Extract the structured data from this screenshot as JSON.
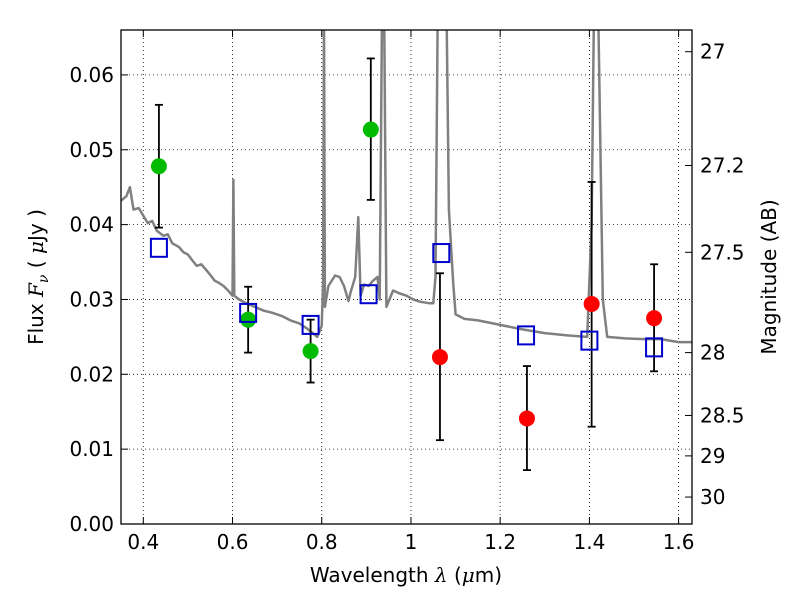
{
  "chart_data": {
    "type": "scatter",
    "xlabel_parts": {
      "name": "Wavelength",
      "symbol": "λ",
      "unit_prefix": "μ",
      "unit": "m"
    },
    "ylabel_parts": {
      "name": "Flux",
      "symbol": "F",
      "subscript": "ν",
      "unit_prefix": "μ",
      "unit": "Jy"
    },
    "y2label": "Magnitude (AB)",
    "xlim": [
      0.35,
      1.63
    ],
    "ylim": [
      0.0,
      0.066
    ],
    "xticks": [
      0.4,
      0.6,
      0.8,
      1.0,
      1.2,
      1.4,
      1.6
    ],
    "xtick_labels": [
      "0.4",
      "0.6",
      "0.8",
      "1",
      "1.2",
      "1.4",
      "1.6"
    ],
    "yticks": [
      0.0,
      0.01,
      0.02,
      0.03,
      0.04,
      0.05,
      0.06
    ],
    "ytick_labels": [
      "0.00",
      "0.01",
      "0.02",
      "0.03",
      "0.04",
      "0.05",
      "0.06"
    ],
    "y2ticks": [
      {
        "label": "27",
        "flux": 0.0631
      },
      {
        "label": "27.2",
        "flux": 0.0479
      },
      {
        "label": "27.5",
        "flux": 0.0363
      },
      {
        "label": "28",
        "flux": 0.0229
      },
      {
        "label": "28.5",
        "flux": 0.0145
      },
      {
        "label": "29",
        "flux": 0.0091
      },
      {
        "label": "30",
        "flux": 0.0036
      }
    ],
    "grid": true,
    "colors": {
      "model": "#808080",
      "optical_detection": "#00bb00",
      "nir_detection": "#ff0000",
      "model_photometry": "#0000cc",
      "errorbar": "#000000"
    },
    "series": [
      {
        "kind": "points_with_errors",
        "color_key": "optical_detection",
        "points": [
          {
            "x": 0.435,
            "y": 0.0478,
            "ylo": 0.0396,
            "yhi": 0.056
          },
          {
            "x": 0.635,
            "y": 0.0273,
            "ylo": 0.0229,
            "yhi": 0.0317
          },
          {
            "x": 0.775,
            "y": 0.0231,
            "ylo": 0.0189,
            "yhi": 0.0273
          },
          {
            "x": 0.91,
            "y": 0.0527,
            "ylo": 0.0433,
            "yhi": 0.0622
          }
        ]
      },
      {
        "kind": "points_with_errors",
        "color_key": "nir_detection",
        "points": [
          {
            "x": 1.065,
            "y": 0.0223,
            "ylo": 0.0112,
            "yhi": 0.0335
          },
          {
            "x": 1.26,
            "y": 0.0141,
            "ylo": 0.0072,
            "yhi": 0.0211
          },
          {
            "x": 1.405,
            "y": 0.0294,
            "ylo": 0.013,
            "yhi": 0.0457
          },
          {
            "x": 1.545,
            "y": 0.0275,
            "ylo": 0.0204,
            "yhi": 0.0347
          }
        ]
      },
      {
        "kind": "open_squares",
        "color_key": "model_photometry",
        "points": [
          {
            "x": 0.435,
            "y": 0.0369
          },
          {
            "x": 0.635,
            "y": 0.0282
          },
          {
            "x": 0.775,
            "y": 0.0266
          },
          {
            "x": 0.905,
            "y": 0.0307
          },
          {
            "x": 1.068,
            "y": 0.0362
          },
          {
            "x": 1.258,
            "y": 0.0252
          },
          {
            "x": 1.4,
            "y": 0.0245
          },
          {
            "x": 1.545,
            "y": 0.0236
          }
        ]
      },
      {
        "kind": "line",
        "color_key": "model",
        "points": [
          [
            0.35,
            0.0432
          ],
          [
            0.362,
            0.0438
          ],
          [
            0.37,
            0.045
          ],
          [
            0.378,
            0.042
          ],
          [
            0.39,
            0.0422
          ],
          [
            0.4,
            0.0412
          ],
          [
            0.41,
            0.0402
          ],
          [
            0.42,
            0.0405
          ],
          [
            0.43,
            0.0392
          ],
          [
            0.445,
            0.0385
          ],
          [
            0.455,
            0.0387
          ],
          [
            0.465,
            0.0375
          ],
          [
            0.48,
            0.037
          ],
          [
            0.49,
            0.0363
          ],
          [
            0.5,
            0.036
          ],
          [
            0.51,
            0.0352
          ],
          [
            0.52,
            0.0345
          ],
          [
            0.53,
            0.0347
          ],
          [
            0.54,
            0.034
          ],
          [
            0.55,
            0.0333
          ],
          [
            0.56,
            0.0325
          ],
          [
            0.57,
            0.0322
          ],
          [
            0.58,
            0.0318
          ],
          [
            0.59,
            0.0312
          ],
          [
            0.6,
            0.0305
          ],
          [
            0.602,
            0.046
          ],
          [
            0.604,
            0.0305
          ],
          [
            0.615,
            0.03
          ],
          [
            0.63,
            0.0295
          ],
          [
            0.65,
            0.029
          ],
          [
            0.67,
            0.0285
          ],
          [
            0.69,
            0.0282
          ],
          [
            0.71,
            0.0278
          ],
          [
            0.73,
            0.0272
          ],
          [
            0.75,
            0.0268
          ],
          [
            0.765,
            0.0262
          ],
          [
            0.78,
            0.0255
          ],
          [
            0.79,
            0.025
          ],
          [
            0.8,
            0.0265
          ],
          [
            0.803,
            0.032
          ],
          [
            0.805,
            0.068
          ],
          [
            0.807,
            0.029
          ],
          [
            0.815,
            0.0318
          ],
          [
            0.83,
            0.0332
          ],
          [
            0.84,
            0.033
          ],
          [
            0.85,
            0.0318
          ],
          [
            0.86,
            0.0298
          ],
          [
            0.865,
            0.031
          ],
          [
            0.875,
            0.033
          ],
          [
            0.882,
            0.041
          ],
          [
            0.887,
            0.0305
          ],
          [
            0.895,
            0.032
          ],
          [
            0.905,
            0.0318
          ],
          [
            0.915,
            0.0325
          ],
          [
            0.925,
            0.033
          ],
          [
            0.93,
            0.03
          ],
          [
            0.935,
            0.068
          ],
          [
            0.94,
            0.068
          ],
          [
            0.945,
            0.029
          ],
          [
            0.96,
            0.0312
          ],
          [
            0.975,
            0.0308
          ],
          [
            0.99,
            0.0305
          ],
          [
            1.005,
            0.03
          ],
          [
            1.02,
            0.0297
          ],
          [
            1.04,
            0.0295
          ],
          [
            1.05,
            0.0295
          ],
          [
            1.055,
            0.033
          ],
          [
            1.06,
            0.068
          ],
          [
            1.08,
            0.068
          ],
          [
            1.085,
            0.042
          ],
          [
            1.095,
            0.032
          ],
          [
            1.1,
            0.028
          ],
          [
            1.12,
            0.0274
          ],
          [
            1.15,
            0.0272
          ],
          [
            1.2,
            0.0266
          ],
          [
            1.25,
            0.026
          ],
          [
            1.3,
            0.0255
          ],
          [
            1.35,
            0.0252
          ],
          [
            1.395,
            0.025
          ],
          [
            1.405,
            0.04
          ],
          [
            1.41,
            0.068
          ],
          [
            1.42,
            0.068
          ],
          [
            1.43,
            0.03
          ],
          [
            1.44,
            0.025
          ],
          [
            1.48,
            0.0248
          ],
          [
            1.52,
            0.0247
          ],
          [
            1.56,
            0.0247
          ],
          [
            1.6,
            0.0243
          ],
          [
            1.63,
            0.0243
          ]
        ]
      }
    ]
  }
}
